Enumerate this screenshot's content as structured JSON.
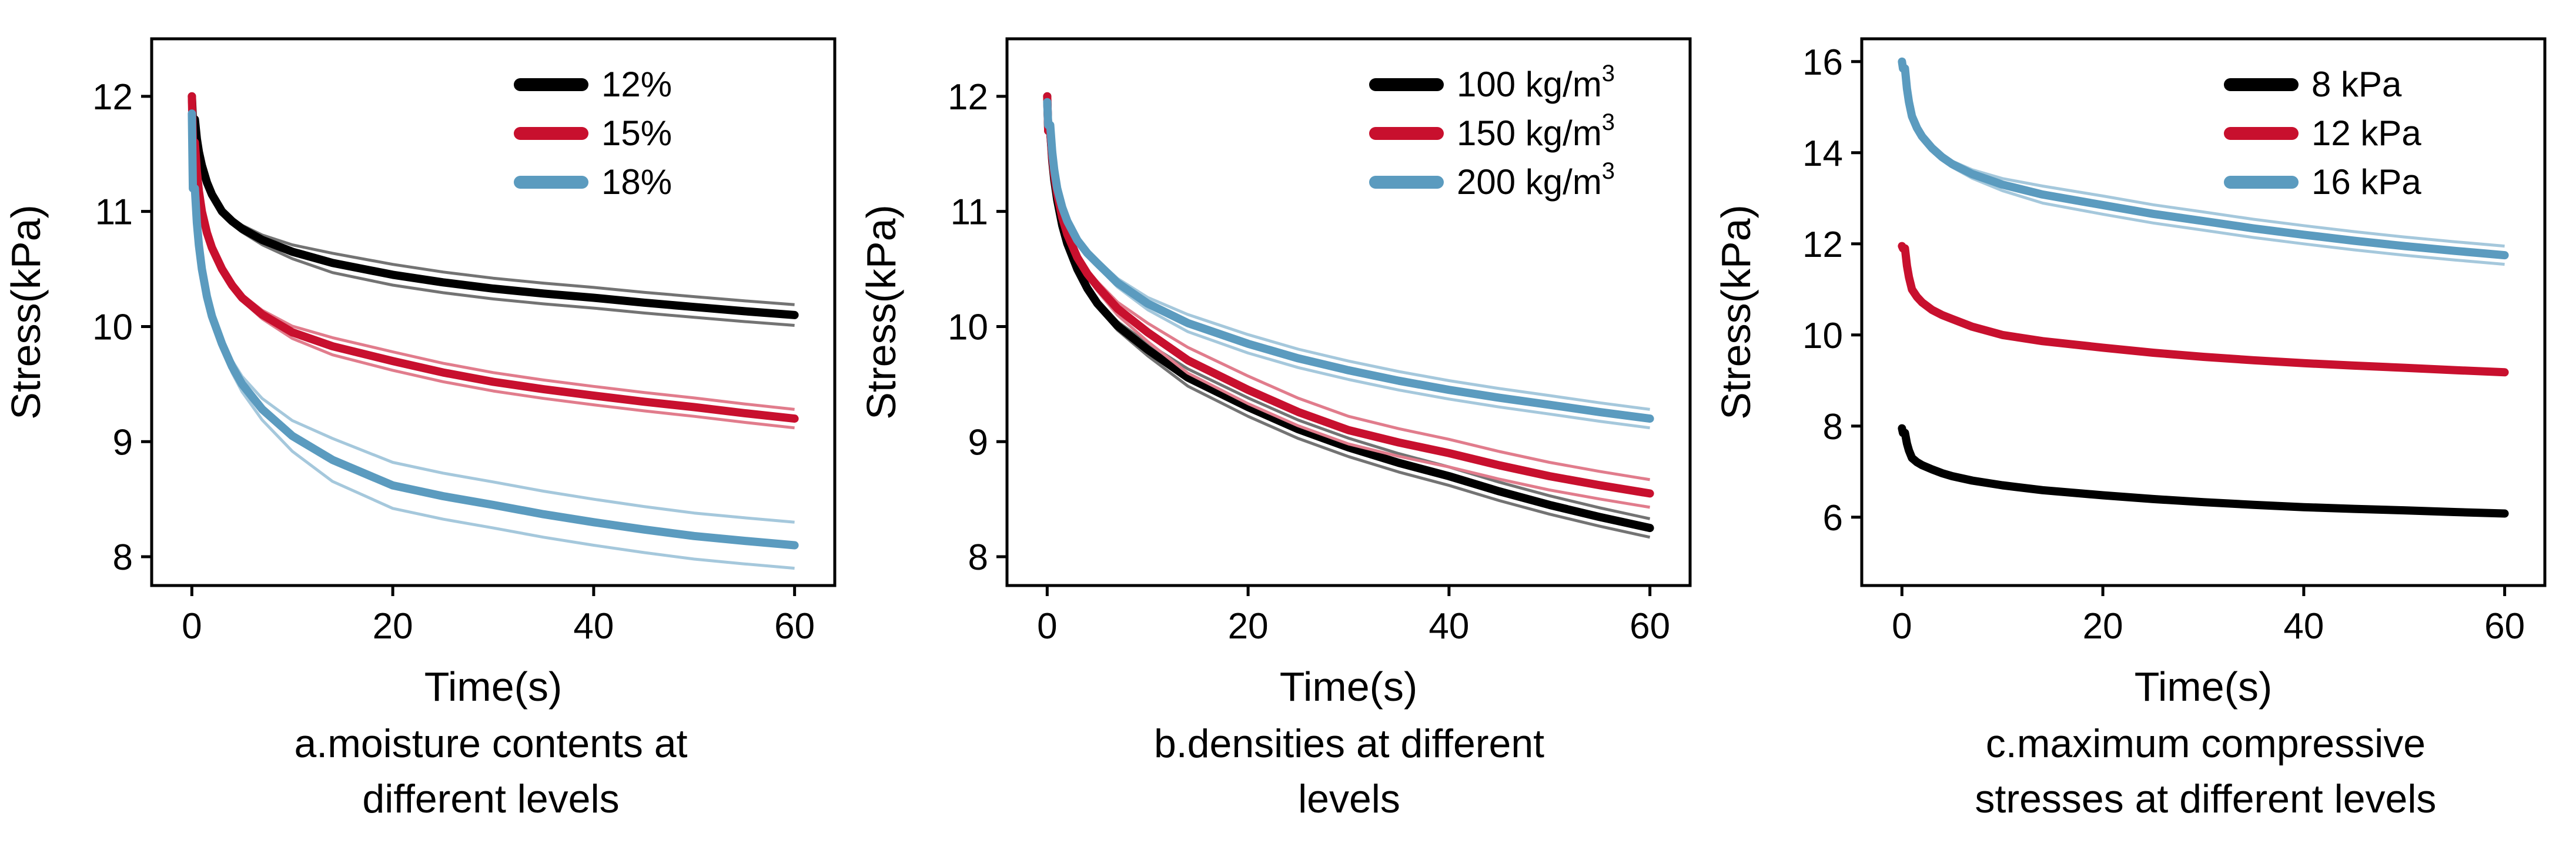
{
  "chart_data": [
    {
      "type": "line",
      "ylabel": "Stress(kPa)",
      "xlabel": "Time(s)",
      "caption": [
        "a.moisture contents at",
        "different levels"
      ],
      "xlim": [
        -4,
        64
      ],
      "ylim": [
        7.75,
        12.5
      ],
      "xticks": [
        "0",
        "20",
        "40",
        "60"
      ],
      "yticks": [
        "8",
        "9",
        "10",
        "11",
        "12"
      ],
      "legend_position": "top-right",
      "series": [
        {
          "name": "12%",
          "color": "#000000",
          "start": 12.0,
          "x": [
            0.3,
            1,
            3,
            5,
            10,
            20,
            30,
            40,
            50,
            60
          ],
          "values": [
            11.8,
            11.4,
            11.0,
            10.85,
            10.65,
            10.45,
            10.33,
            10.25,
            10.17,
            10.1
          ],
          "spread": 0.09
        },
        {
          "name": "15%",
          "color": "#c8102e",
          "start": 12.0,
          "x": [
            0.3,
            1,
            3,
            5,
            10,
            20,
            30,
            40,
            50,
            60
          ],
          "values": [
            11.6,
            11.0,
            10.5,
            10.25,
            9.95,
            9.7,
            9.52,
            9.4,
            9.3,
            9.2
          ],
          "spread": 0.08
        },
        {
          "name": "18%",
          "color": "#5b9bbf",
          "start": 11.85,
          "x": [
            0.3,
            1,
            3,
            5,
            10,
            20,
            30,
            40,
            50,
            60
          ],
          "values": [
            11.2,
            10.5,
            9.85,
            9.5,
            9.05,
            8.62,
            8.45,
            8.3,
            8.18,
            8.1
          ],
          "spread": 0.2
        }
      ]
    },
    {
      "type": "line",
      "ylabel": "Stress(kPa)",
      "xlabel": "Time(s)",
      "caption": [
        "b.densities at different",
        "levels"
      ],
      "xlim": [
        -4,
        64
      ],
      "ylim": [
        7.75,
        12.5
      ],
      "xticks": [
        "0",
        "20",
        "40",
        "60"
      ],
      "yticks": [
        "8",
        "9",
        "10",
        "11",
        "12"
      ],
      "legend_position": "top-right",
      "series": [
        {
          "name": "100 kg/m",
          "sup": "3",
          "color": "#000000",
          "start": 12.0,
          "x": [
            0.3,
            1,
            3,
            5,
            10,
            20,
            30,
            40,
            50,
            60
          ],
          "values": [
            11.7,
            11.1,
            10.5,
            10.2,
            9.8,
            9.3,
            8.95,
            8.7,
            8.45,
            8.25
          ],
          "spread": 0.08
        },
        {
          "name": "150 kg/m",
          "sup": "3",
          "color": "#c8102e",
          "start": 12.0,
          "x": [
            0.3,
            1,
            3,
            5,
            10,
            20,
            30,
            40,
            50,
            60
          ],
          "values": [
            11.7,
            11.15,
            10.6,
            10.35,
            9.95,
            9.45,
            9.1,
            8.9,
            8.7,
            8.55
          ],
          "spread": 0.12
        },
        {
          "name": "200 kg/m",
          "sup": "3",
          "color": "#5b9bbf",
          "start": 11.95,
          "x": [
            0.3,
            1,
            3,
            5,
            10,
            20,
            30,
            40,
            50,
            60
          ],
          "values": [
            11.75,
            11.2,
            10.75,
            10.55,
            10.2,
            9.85,
            9.62,
            9.45,
            9.32,
            9.2
          ],
          "spread": 0.08
        }
      ]
    },
    {
      "type": "line",
      "ylabel": "Stress(kPa)",
      "xlabel": "Time(s)",
      "caption": [
        "c.maximum compressive",
        "stresses at different levels"
      ],
      "xlim": [
        -4,
        64
      ],
      "ylim": [
        4.5,
        16.5
      ],
      "xticks": [
        "0",
        "20",
        "40",
        "60"
      ],
      "yticks": [
        "6",
        "8",
        "10",
        "12",
        "14",
        "16"
      ],
      "legend_position": "top-right",
      "series": [
        {
          "name": "8 kPa",
          "color": "#000000",
          "start": 7.95,
          "x": [
            0.3,
            1,
            3,
            5,
            10,
            20,
            30,
            40,
            50,
            60
          ],
          "values": [
            7.85,
            7.3,
            7.05,
            6.9,
            6.7,
            6.48,
            6.33,
            6.22,
            6.15,
            6.08
          ],
          "spread": 0.04
        },
        {
          "name": "12 kPa",
          "color": "#c8102e",
          "start": 11.95,
          "x": [
            0.3,
            1,
            3,
            5,
            10,
            20,
            30,
            40,
            50,
            60
          ],
          "values": [
            11.9,
            11.0,
            10.55,
            10.35,
            10.0,
            9.72,
            9.52,
            9.38,
            9.28,
            9.18
          ],
          "spread": 0.05
        },
        {
          "name": "16 kPa",
          "color": "#5b9bbf",
          "start": 16.0,
          "x": [
            0.3,
            1,
            3,
            5,
            10,
            20,
            30,
            40,
            50,
            60
          ],
          "values": [
            15.85,
            14.8,
            14.1,
            13.75,
            13.3,
            12.85,
            12.5,
            12.2,
            11.95,
            11.75
          ],
          "spread": 0.2
        }
      ]
    }
  ]
}
